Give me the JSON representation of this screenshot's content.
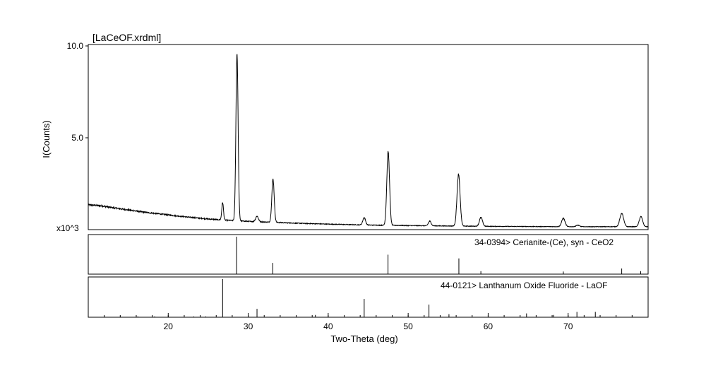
{
  "chart_data": {
    "type": "line",
    "title": "[LaCeOF.xrdml]",
    "ylabel": "I(Counts)",
    "xlabel": "Two-Theta (deg)",
    "y_multiplier_label": "x10^3",
    "xlim": [
      10.0,
      80.0
    ],
    "ylim": [
      0.0,
      10.0
    ],
    "yticks": [
      5.0,
      10.0
    ],
    "ytick_labels": [
      "5.0",
      "10.0"
    ],
    "xticks": [
      20,
      30,
      40,
      50,
      60,
      70
    ],
    "xtick_labels": [
      "20",
      "30",
      "40",
      "50",
      "60",
      "70"
    ],
    "grid": false,
    "background": {
      "x": [
        10.0,
        11.5,
        13.0,
        15.0,
        17.0,
        19.0,
        21.0,
        23.0,
        25.0,
        27.0,
        30.0,
        33.0,
        36.0,
        40.0,
        45.0,
        50.0,
        55.0,
        60.0,
        65.0,
        70.0,
        75.0,
        80.0
      ],
      "y": [
        1.35,
        1.3,
        1.2,
        1.07,
        0.95,
        0.85,
        0.75,
        0.66,
        0.58,
        0.52,
        0.45,
        0.4,
        0.35,
        0.3,
        0.25,
        0.22,
        0.2,
        0.18,
        0.17,
        0.16,
        0.16,
        0.16
      ]
    },
    "peaks": [
      {
        "two_theta": 26.8,
        "height": 0.95,
        "fwhm": 0.25
      },
      {
        "two_theta": 28.6,
        "height": 9.1,
        "fwhm": 0.32
      },
      {
        "two_theta": 31.1,
        "height": 0.3,
        "fwhm": 0.4
      },
      {
        "two_theta": 33.1,
        "height": 2.35,
        "fwhm": 0.35
      },
      {
        "two_theta": 44.5,
        "height": 0.4,
        "fwhm": 0.4
      },
      {
        "two_theta": 47.5,
        "height": 4.0,
        "fwhm": 0.4
      },
      {
        "two_theta": 52.7,
        "height": 0.25,
        "fwhm": 0.4
      },
      {
        "two_theta": 56.3,
        "height": 2.8,
        "fwhm": 0.45
      },
      {
        "two_theta": 59.1,
        "height": 0.48,
        "fwhm": 0.45
      },
      {
        "two_theta": 69.4,
        "height": 0.45,
        "fwhm": 0.5
      },
      {
        "two_theta": 71.2,
        "height": 0.08,
        "fwhm": 0.5
      },
      {
        "two_theta": 76.7,
        "height": 0.72,
        "fwhm": 0.55
      },
      {
        "two_theta": 79.1,
        "height": 0.55,
        "fwhm": 0.5
      }
    ],
    "reference_patterns": [
      {
        "label": "34-0394> Cerianite-(Ce), syn - CeO2",
        "lines": [
          {
            "two_theta": 28.55,
            "intensity": 100
          },
          {
            "two_theta": 33.08,
            "intensity": 30
          },
          {
            "two_theta": 47.48,
            "intensity": 52
          },
          {
            "two_theta": 56.34,
            "intensity": 42
          },
          {
            "two_theta": 59.09,
            "intensity": 8
          },
          {
            "two_theta": 69.4,
            "intensity": 7
          },
          {
            "two_theta": 76.7,
            "intensity": 15
          },
          {
            "two_theta": 79.07,
            "intensity": 8
          }
        ]
      },
      {
        "label": "44-0121> Lanthanum Oxide Fluoride - LaOF",
        "lines": [
          {
            "two_theta": 12.0,
            "intensity": 2
          },
          {
            "two_theta": 14.0,
            "intensity": 2
          },
          {
            "two_theta": 16.2,
            "intensity": 2
          },
          {
            "two_theta": 18.3,
            "intensity": 2
          },
          {
            "two_theta": 20.0,
            "intensity": 2
          },
          {
            "two_theta": 23.2,
            "intensity": 2
          },
          {
            "two_theta": 24.7,
            "intensity": 2
          },
          {
            "two_theta": 26.8,
            "intensity": 100
          },
          {
            "two_theta": 31.1,
            "intensity": 22
          },
          {
            "two_theta": 38.4,
            "intensity": 6
          },
          {
            "two_theta": 44.5,
            "intensity": 48
          },
          {
            "two_theta": 52.6,
            "intensity": 33
          },
          {
            "two_theta": 55.1,
            "intensity": 8
          },
          {
            "two_theta": 64.8,
            "intensity": 10
          },
          {
            "two_theta": 68.2,
            "intensity": 6
          },
          {
            "two_theta": 71.1,
            "intensity": 14
          },
          {
            "two_theta": 73.4,
            "intensity": 14
          }
        ]
      }
    ]
  }
}
